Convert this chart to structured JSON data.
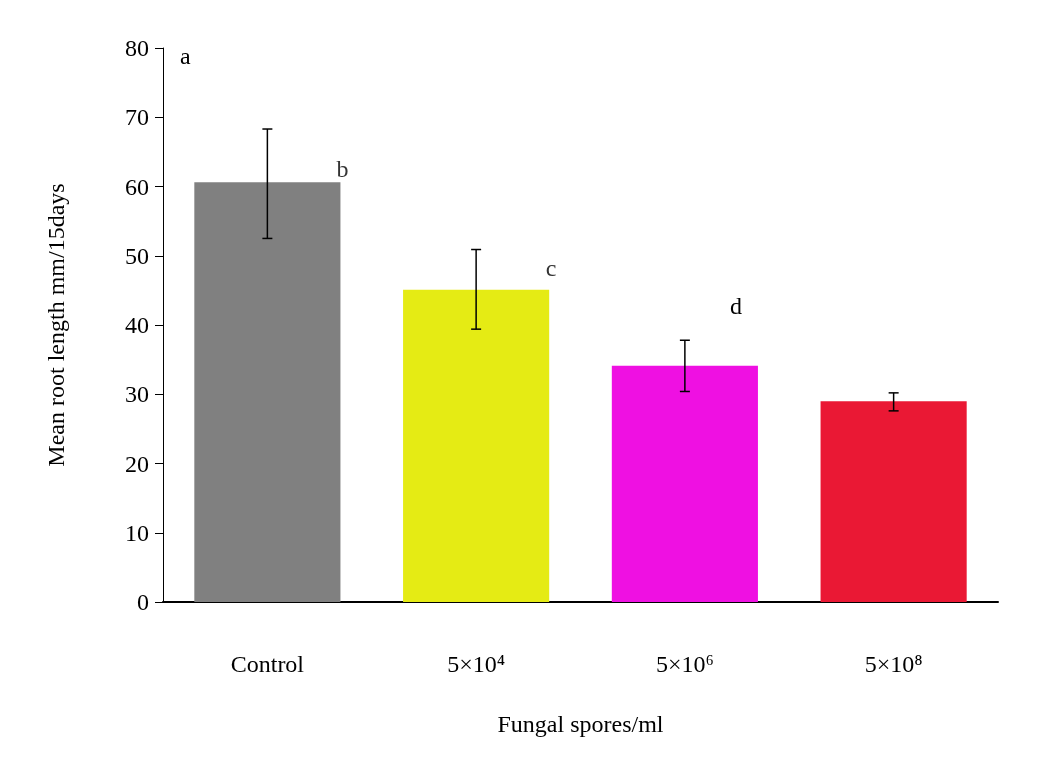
{
  "chart_data": {
    "type": "bar",
    "xlabel": "Fungal spores/ml",
    "ylabel": "Mean root length mm/15days",
    "categories": [
      "Control",
      "5×10⁴",
      "5×10⁶",
      "5×10⁸"
    ],
    "values": [
      60.6,
      45.1,
      34.1,
      29.0
    ],
    "colors": [
      "#808080",
      "#e5eb14",
      "#ef10e2",
      "#ea1834"
    ],
    "errors": [
      [
        52.5,
        68.3
      ],
      [
        39.4,
        50.9
      ],
      [
        30.4,
        37.8
      ],
      [
        27.6,
        30.2
      ]
    ],
    "ylim": [
      0,
      80
    ],
    "yticks": [
      0,
      10,
      20,
      30,
      40,
      50,
      60,
      70,
      80
    ],
    "grid": false,
    "annotations": [
      "a",
      {
        "text": "b",
        "x": "Control",
        "y": 62.5
      },
      {
        "text": "c",
        "x": "5×10⁴",
        "y": 48.2
      },
      "d"
    ]
  }
}
